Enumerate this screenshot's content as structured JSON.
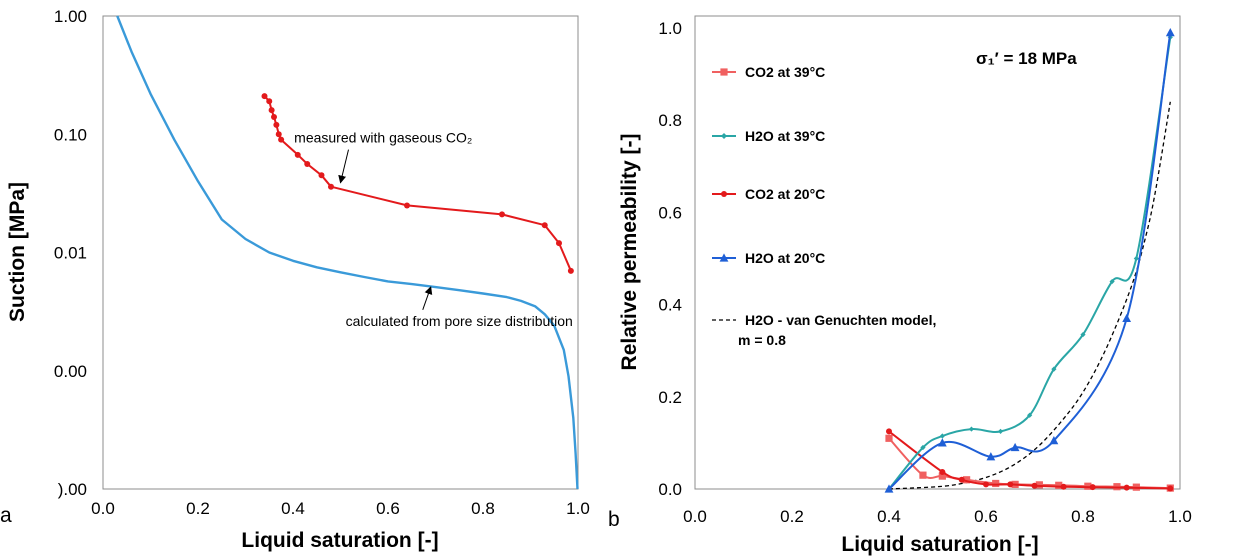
{
  "chart_data": [
    {
      "type": "line",
      "panel_label": "a",
      "xlabel": "Liquid saturation [-]",
      "ylabel": "Suction [MPa]",
      "xlim": [
        0.0,
        1.0
      ],
      "x_ticks": [
        "0.0",
        "0.2",
        "0.4",
        "0.6",
        "0.8",
        "1.0"
      ],
      "y_scale": "log",
      "ylim": [
        0.0001,
        1.0
      ],
      "y_tick_values": [
        1.0,
        0.1,
        0.01,
        0.001,
        0.0001
      ],
      "y_tick_labels": [
        "1.00",
        "0.10",
        "0.01",
        "0.00",
        ").00"
      ],
      "grid": false,
      "series": [
        {
          "color": "#e31a1c",
          "marker": "circle",
          "x": [
            0.34,
            0.35,
            0.355,
            0.36,
            0.365,
            0.37,
            0.375,
            0.41,
            0.43,
            0.46,
            0.48,
            0.64,
            0.84,
            0.93,
            0.96,
            0.985
          ],
          "y": [
            0.21,
            0.19,
            0.16,
            0.14,
            0.12,
            0.1,
            0.09,
            0.067,
            0.056,
            0.045,
            0.036,
            0.025,
            0.021,
            0.017,
            0.012,
            0.007
          ]
        },
        {
          "color": "#3a9ad9",
          "marker": "none",
          "x": [
            0.03,
            0.06,
            0.1,
            0.15,
            0.2,
            0.25,
            0.3,
            0.35,
            0.4,
            0.45,
            0.5,
            0.55,
            0.6,
            0.65,
            0.7,
            0.75,
            0.8,
            0.85,
            0.88,
            0.91,
            0.93,
            0.95,
            0.97,
            0.98,
            0.99,
            0.995,
            0.999
          ],
          "y": [
            1.0,
            0.5,
            0.22,
            0.09,
            0.04,
            0.019,
            0.013,
            0.01,
            0.0085,
            0.0075,
            0.0068,
            0.0062,
            0.0057,
            0.0054,
            0.0051,
            0.0048,
            0.0045,
            0.0042,
            0.0039,
            0.0035,
            0.003,
            0.0024,
            0.0015,
            0.0009,
            0.0004,
            0.0002,
            0.0001
          ]
        }
      ],
      "annotations": [
        {
          "text": "measured with gaseous CO₂",
          "x": 0.59,
          "y": 0.085,
          "arrow_to": [
            0.5,
            0.039
          ]
        },
        {
          "text": "calculated from pore size distribution",
          "x": 0.75,
          "y": 0.0024,
          "arrow_to": [
            0.69,
            0.0051
          ]
        }
      ]
    },
    {
      "type": "line",
      "panel_label": "b",
      "xlabel": "Liquid saturation [-]",
      "ylabel": "Relative permeability [-]",
      "xlim": [
        0.0,
        1.0
      ],
      "ylim": [
        0.0,
        1.0
      ],
      "x_ticks": [
        "0.0",
        "0.2",
        "0.4",
        "0.6",
        "0.8",
        "1.0"
      ],
      "y_ticks": [
        "0.0",
        "0.2",
        "0.4",
        "0.6",
        "0.8",
        "1.0"
      ],
      "grid": false,
      "legend_position": "left",
      "stress_label": "σ₁′ = 18 MPa",
      "series": [
        {
          "name": "CO2 at 39°C",
          "color": "#f06060",
          "marker": "square",
          "x": [
            0.4,
            0.47,
            0.51,
            0.56,
            0.62,
            0.66,
            0.71,
            0.75,
            0.81,
            0.87,
            0.91,
            0.98
          ],
          "y": [
            0.11,
            0.03,
            0.028,
            0.02,
            0.012,
            0.01,
            0.009,
            0.008,
            0.006,
            0.005,
            0.004,
            0.002
          ]
        },
        {
          "name": "H2O at 39°C",
          "color": "#2aa6a6",
          "marker": "diamond",
          "x": [
            0.4,
            0.47,
            0.51,
            0.57,
            0.63,
            0.69,
            0.74,
            0.8,
            0.86,
            0.91,
            0.98
          ],
          "y": [
            0.0,
            0.09,
            0.115,
            0.13,
            0.125,
            0.16,
            0.26,
            0.335,
            0.45,
            0.5,
            0.98
          ]
        },
        {
          "name": "CO2 at 20°C",
          "color": "#e31a1c",
          "marker": "circle",
          "x": [
            0.4,
            0.51,
            0.55,
            0.6,
            0.65,
            0.7,
            0.76,
            0.82,
            0.89,
            0.98
          ],
          "y": [
            0.125,
            0.037,
            0.02,
            0.01,
            0.01,
            0.007,
            0.005,
            0.004,
            0.003,
            0.001
          ]
        },
        {
          "name": "H2O at 20°C",
          "color": "#1f5fd6",
          "marker": "triangle",
          "x": [
            0.4,
            0.51,
            0.61,
            0.66,
            0.74,
            0.89,
            0.98
          ],
          "y": [
            0.0,
            0.1,
            0.07,
            0.09,
            0.105,
            0.37,
            0.99
          ]
        },
        {
          "name": "H2O - van Genuchten model,\nm = 0.8",
          "color": "#000000",
          "marker": "none",
          "dashed": true,
          "x": [
            0.4,
            0.5,
            0.55,
            0.6,
            0.65,
            0.7,
            0.75,
            0.8,
            0.85,
            0.9,
            0.93,
            0.95,
            0.98
          ],
          "y": [
            0.0,
            0.005,
            0.012,
            0.025,
            0.048,
            0.085,
            0.14,
            0.21,
            0.31,
            0.44,
            0.55,
            0.65,
            0.84
          ]
        }
      ]
    }
  ]
}
